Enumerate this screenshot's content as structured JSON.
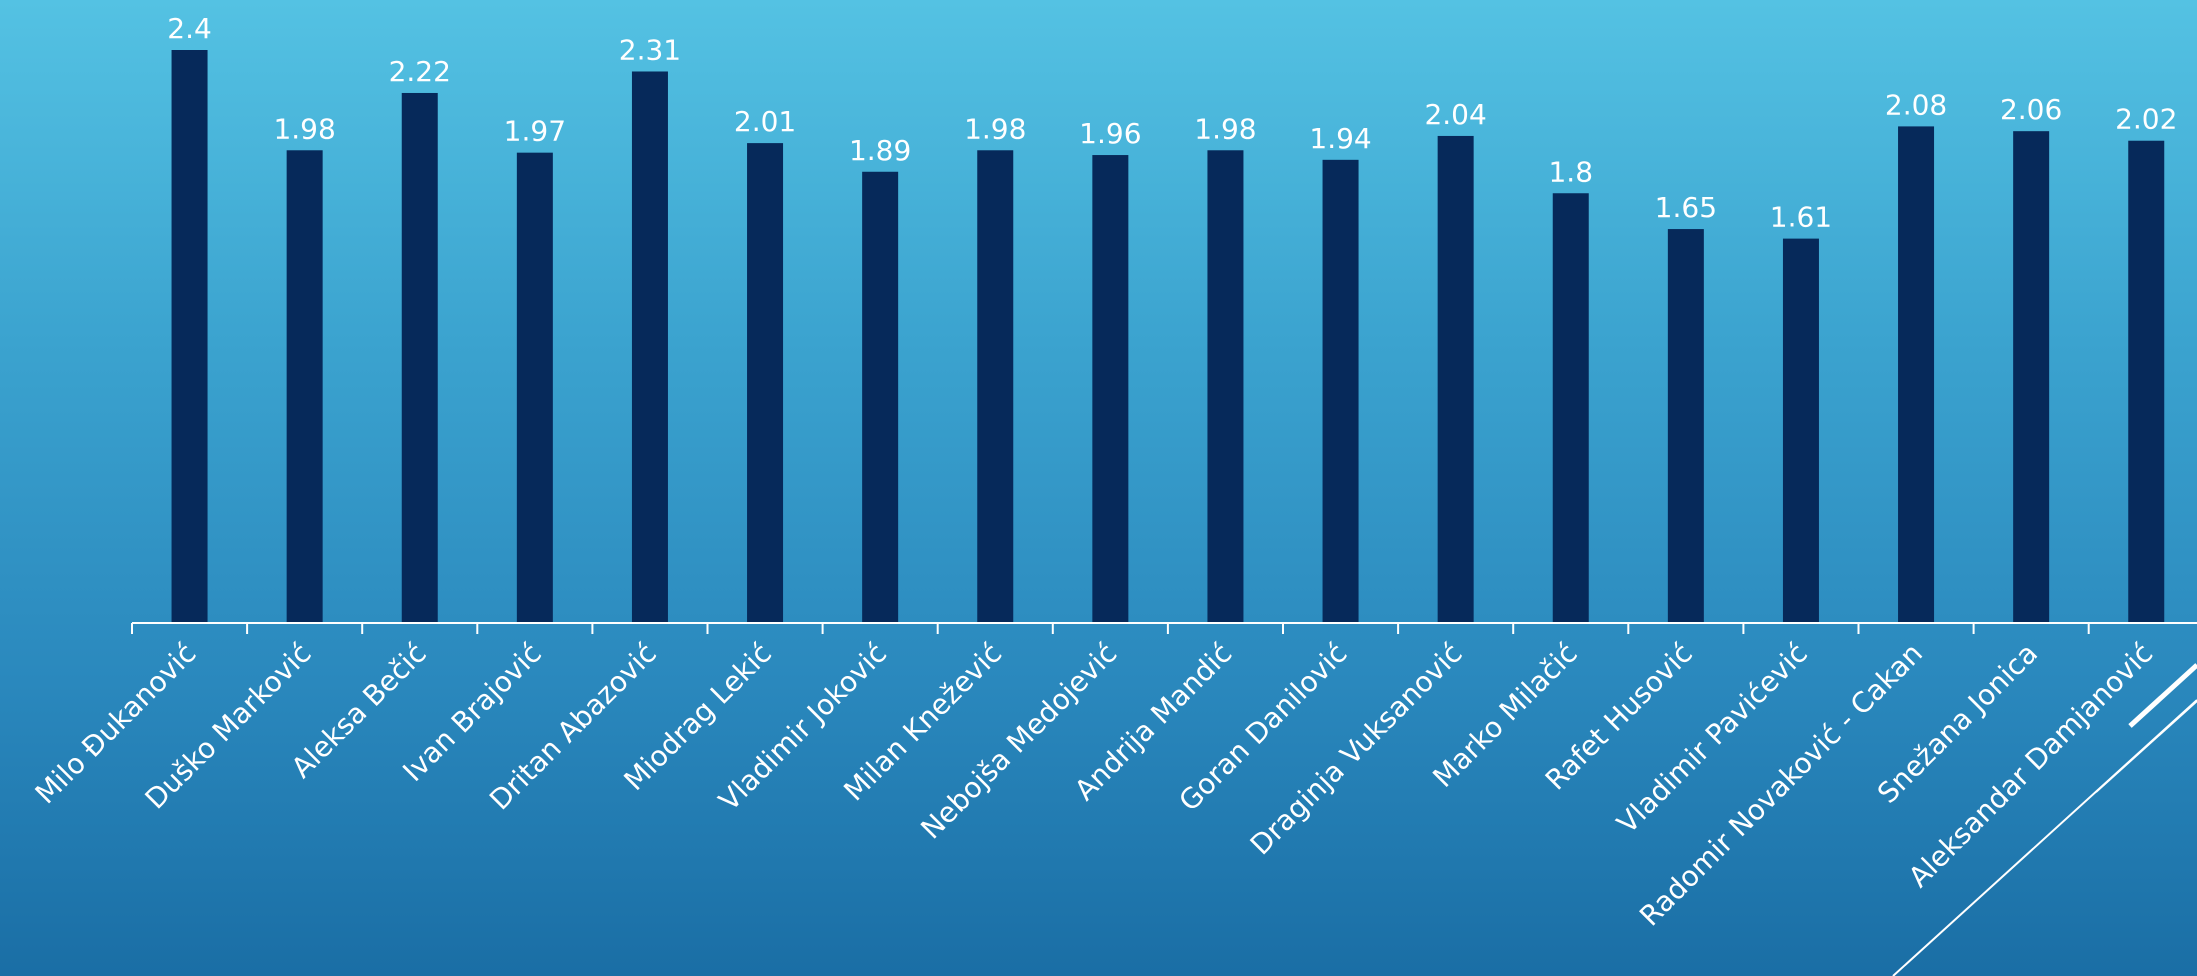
{
  "chart_data": {
    "type": "bar",
    "title": "",
    "xlabel": "",
    "ylabel": "",
    "ylim": [
      0,
      2.5
    ],
    "grid": false,
    "legend": "none",
    "categories": [
      "Milo Đukanović",
      "Duško Marković",
      "Aleksa Bečić",
      "Ivan Brajović",
      "Dritan Abazović",
      "Miodrag Lekić",
      "Vladimir Joković",
      "Milan Knežević",
      "Nebojša Medojević",
      "Andrija Mandić",
      "Goran Danilović",
      "Draginja Vuksanović",
      "Marko Milačić",
      "Rafet Husović",
      "Vladimir Pavićević",
      "Radomir Novaković - Cakan",
      "Snežana Jonica",
      "Aleksandar Damjanović"
    ],
    "values": [
      2.4,
      1.98,
      2.22,
      1.97,
      2.31,
      2.01,
      1.89,
      1.98,
      1.96,
      1.98,
      1.94,
      2.04,
      1.8,
      1.65,
      1.61,
      2.08,
      2.06,
      2.02
    ],
    "value_labels": [
      "2.4",
      "1.98",
      "2.22",
      "1.97",
      "2.31",
      "2.01",
      "1.89",
      "1.98",
      "1.96",
      "1.98",
      "1.94",
      "2.04",
      "1.8",
      "1.65",
      "1.61",
      "2.08",
      "2.06",
      "2.02"
    ]
  },
  "colors": {
    "bar": "#06295a",
    "axis": "#ffffff",
    "text": "#ffffff"
  }
}
